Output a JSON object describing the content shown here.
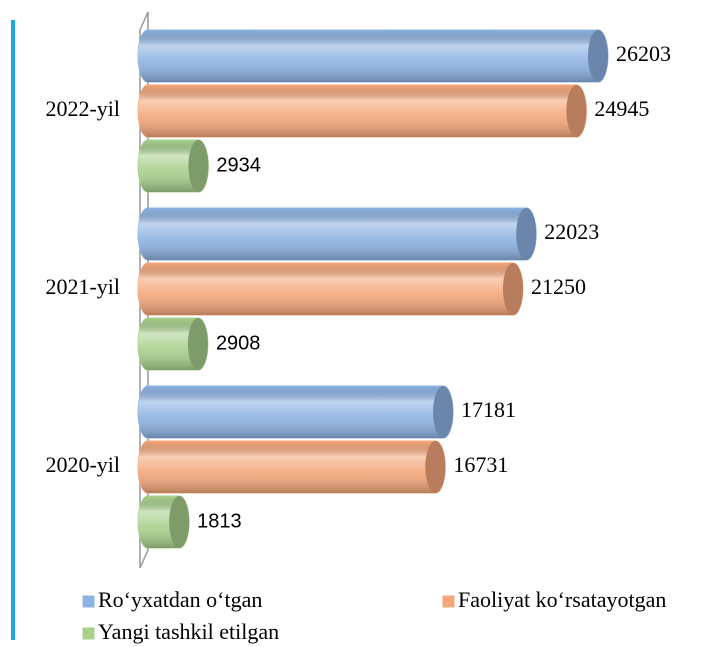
{
  "chart_data": {
    "type": "bar",
    "orientation": "horizontal",
    "categories": [
      "2022-yil",
      "2021-yil",
      "2020-yil"
    ],
    "series": [
      {
        "name": "Ro‘yxatdan o‘tgan",
        "color": "#8db3e2",
        "values": [
          26203,
          22023,
          17181
        ]
      },
      {
        "name": "Faoliyat ko‘rsatayotgan",
        "color": "#f4a77a",
        "values": [
          24945,
          21250,
          16731
        ]
      },
      {
        "name": "Yangi tashkil etilgan",
        "color": "#a8d08d",
        "values": [
          2934,
          2908,
          1813
        ]
      }
    ]
  }
}
